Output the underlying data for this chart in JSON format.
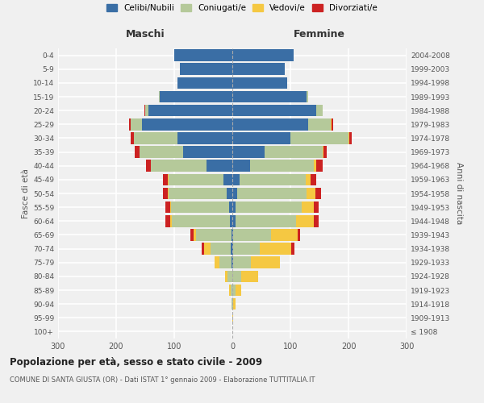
{
  "age_groups": [
    "100+",
    "95-99",
    "90-94",
    "85-89",
    "80-84",
    "75-79",
    "70-74",
    "65-69",
    "60-64",
    "55-59",
    "50-54",
    "45-49",
    "40-44",
    "35-39",
    "30-34",
    "25-29",
    "20-24",
    "15-19",
    "10-14",
    "5-9",
    "0-4"
  ],
  "birth_years": [
    "≤ 1908",
    "1909-1913",
    "1914-1918",
    "1919-1923",
    "1924-1928",
    "1929-1933",
    "1934-1938",
    "1939-1943",
    "1944-1948",
    "1949-1953",
    "1954-1958",
    "1959-1963",
    "1964-1968",
    "1969-1973",
    "1974-1978",
    "1979-1983",
    "1984-1988",
    "1989-1993",
    "1994-1998",
    "1999-2003",
    "2004-2008"
  ],
  "maschi": {
    "celibi": [
      0,
      0,
      0,
      0,
      0,
      2,
      3,
      2,
      4,
      5,
      10,
      15,
      45,
      85,
      95,
      155,
      145,
      125,
      95,
      90,
      100
    ],
    "coniugati": [
      0,
      0,
      1,
      3,
      8,
      20,
      35,
      60,
      100,
      100,
      100,
      95,
      95,
      75,
      75,
      20,
      5,
      2,
      0,
      0,
      0
    ],
    "vedovi": [
      0,
      0,
      0,
      2,
      5,
      8,
      10,
      5,
      3,
      2,
      1,
      1,
      0,
      0,
      0,
      0,
      0,
      0,
      0,
      0,
      0
    ],
    "divorziati": [
      0,
      0,
      0,
      0,
      0,
      0,
      5,
      5,
      8,
      8,
      8,
      8,
      8,
      8,
      5,
      3,
      2,
      0,
      0,
      0,
      0
    ]
  },
  "femmine": {
    "nubili": [
      0,
      0,
      0,
      0,
      0,
      2,
      2,
      2,
      5,
      5,
      8,
      12,
      30,
      55,
      100,
      130,
      145,
      128,
      95,
      90,
      105
    ],
    "coniugate": [
      0,
      0,
      2,
      5,
      15,
      30,
      45,
      65,
      105,
      115,
      120,
      115,
      110,
      100,
      100,
      40,
      10,
      3,
      0,
      0,
      0
    ],
    "vedove": [
      0,
      1,
      3,
      10,
      30,
      50,
      55,
      45,
      30,
      20,
      15,
      8,
      5,
      2,
      2,
      1,
      0,
      0,
      0,
      0,
      0
    ],
    "divorziate": [
      0,
      0,
      0,
      0,
      0,
      0,
      5,
      5,
      8,
      8,
      10,
      10,
      10,
      5,
      3,
      2,
      1,
      0,
      0,
      0,
      0
    ]
  },
  "colors": {
    "celibi": "#3a6ea5",
    "coniugati": "#b5c99a",
    "vedovi": "#f5c842",
    "divorziati": "#cc2222"
  },
  "title": "Popolazione per età, sesso e stato civile - 2009",
  "subtitle": "COMUNE DI SANTA GIUSTA (OR) - Dati ISTAT 1° gennaio 2009 - Elaborazione TUTTITALIA.IT",
  "xlabel_maschi": "Maschi",
  "xlabel_femmine": "Femmine",
  "ylabel_left": "Fasce di età",
  "ylabel_right": "Anni di nascita",
  "xlim": 300,
  "background_color": "#f0f0f0",
  "grid_color": "#ffffff"
}
